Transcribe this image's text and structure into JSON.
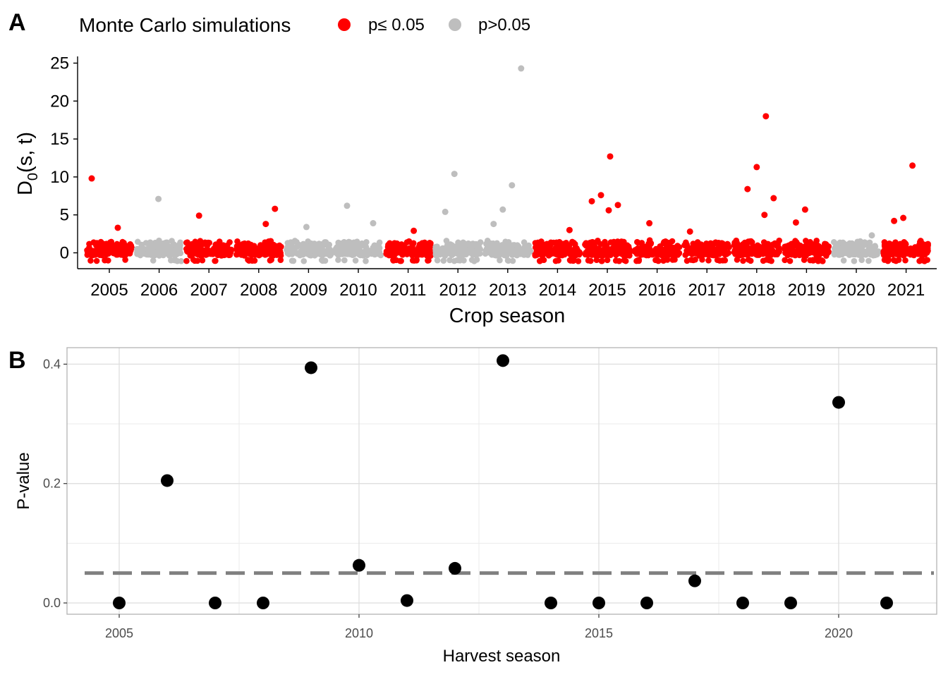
{
  "legend": {
    "title": "Monte Carlo simulations",
    "items": [
      {
        "label": "p≤ 0.05",
        "color": "#ff0000"
      },
      {
        "label": "p>0.05",
        "color": "#bebebe"
      }
    ]
  },
  "panel_labels": {
    "a": "A",
    "b": "B"
  },
  "chart_data": [
    {
      "type": "scatter",
      "panel": "A",
      "xlabel": "Crop season",
      "ylabel_main": "D",
      "ylabel_sub": "0",
      "ylabel_rest": "(s, t)",
      "categories": [
        "2005",
        "2006",
        "2007",
        "2008",
        "2009",
        "2010",
        "2011",
        "2012",
        "2013",
        "2014",
        "2015",
        "2016",
        "2017",
        "2018",
        "2019",
        "2020",
        "2021"
      ],
      "significant": [
        true,
        false,
        true,
        true,
        false,
        false,
        true,
        false,
        false,
        true,
        true,
        true,
        true,
        true,
        true,
        false,
        true
      ],
      "yticks": [
        0,
        5,
        10,
        15,
        20,
        25
      ],
      "ylim": [
        -1.3,
        25.8
      ],
      "grid": false,
      "legend_position": "top",
      "notable_points": [
        {
          "x": "2005",
          "y": 9.8
        },
        {
          "x": "2005",
          "y": 3.3
        },
        {
          "x": "2006",
          "y": 7.1
        },
        {
          "x": "2007",
          "y": 4.9
        },
        {
          "x": "2008",
          "y": 5.8
        },
        {
          "x": "2008",
          "y": 3.8
        },
        {
          "x": "2009",
          "y": 3.4
        },
        {
          "x": "2010",
          "y": 6.2
        },
        {
          "x": "2010",
          "y": 3.9
        },
        {
          "x": "2011",
          "y": 2.9
        },
        {
          "x": "2012",
          "y": 10.4
        },
        {
          "x": "2012",
          "y": 5.4
        },
        {
          "x": "2013",
          "y": 24.3
        },
        {
          "x": "2013",
          "y": 8.9
        },
        {
          "x": "2013",
          "y": 5.7
        },
        {
          "x": "2013",
          "y": 3.8
        },
        {
          "x": "2014",
          "y": 3.0
        },
        {
          "x": "2015",
          "y": 12.7
        },
        {
          "x": "2015",
          "y": 7.6
        },
        {
          "x": "2015",
          "y": 6.8
        },
        {
          "x": "2015",
          "y": 6.3
        },
        {
          "x": "2015",
          "y": 5.6
        },
        {
          "x": "2016",
          "y": 3.9
        },
        {
          "x": "2017",
          "y": 2.8
        },
        {
          "x": "2018",
          "y": 18.0
        },
        {
          "x": "2018",
          "y": 11.3
        },
        {
          "x": "2018",
          "y": 8.4
        },
        {
          "x": "2018",
          "y": 7.2
        },
        {
          "x": "2018",
          "y": 5.0
        },
        {
          "x": "2019",
          "y": 5.7
        },
        {
          "x": "2019",
          "y": 4.0
        },
        {
          "x": "2020",
          "y": 2.3
        },
        {
          "x": "2021",
          "y": 11.5
        },
        {
          "x": "2021",
          "y": 4.6
        },
        {
          "x": "2021",
          "y": 4.2
        }
      ]
    },
    {
      "type": "scatter",
      "panel": "B",
      "xlabel": "Harvest season",
      "ylabel": "P-value",
      "x": [
        2005,
        2006,
        2007,
        2008,
        2009,
        2010,
        2011,
        2012,
        2013,
        2014,
        2015,
        2016,
        2017,
        2018,
        2019,
        2020,
        2021
      ],
      "y": [
        0.0,
        0.205,
        0.0,
        0.0,
        0.394,
        0.063,
        0.004,
        0.058,
        0.406,
        0.0,
        0.0,
        0.0,
        0.037,
        0.0,
        0.0,
        0.336,
        0.0
      ],
      "xticks": [
        2005,
        2010,
        2015,
        2020
      ],
      "yticks": [
        0.0,
        0.2,
        0.4
      ],
      "ytick_labels": [
        "0.0",
        "0.2",
        "0.4"
      ],
      "xlim": [
        2003.9,
        2022.1
      ],
      "ylim": [
        -0.02,
        0.425
      ],
      "reference_line": 0.05,
      "grid": true
    }
  ]
}
